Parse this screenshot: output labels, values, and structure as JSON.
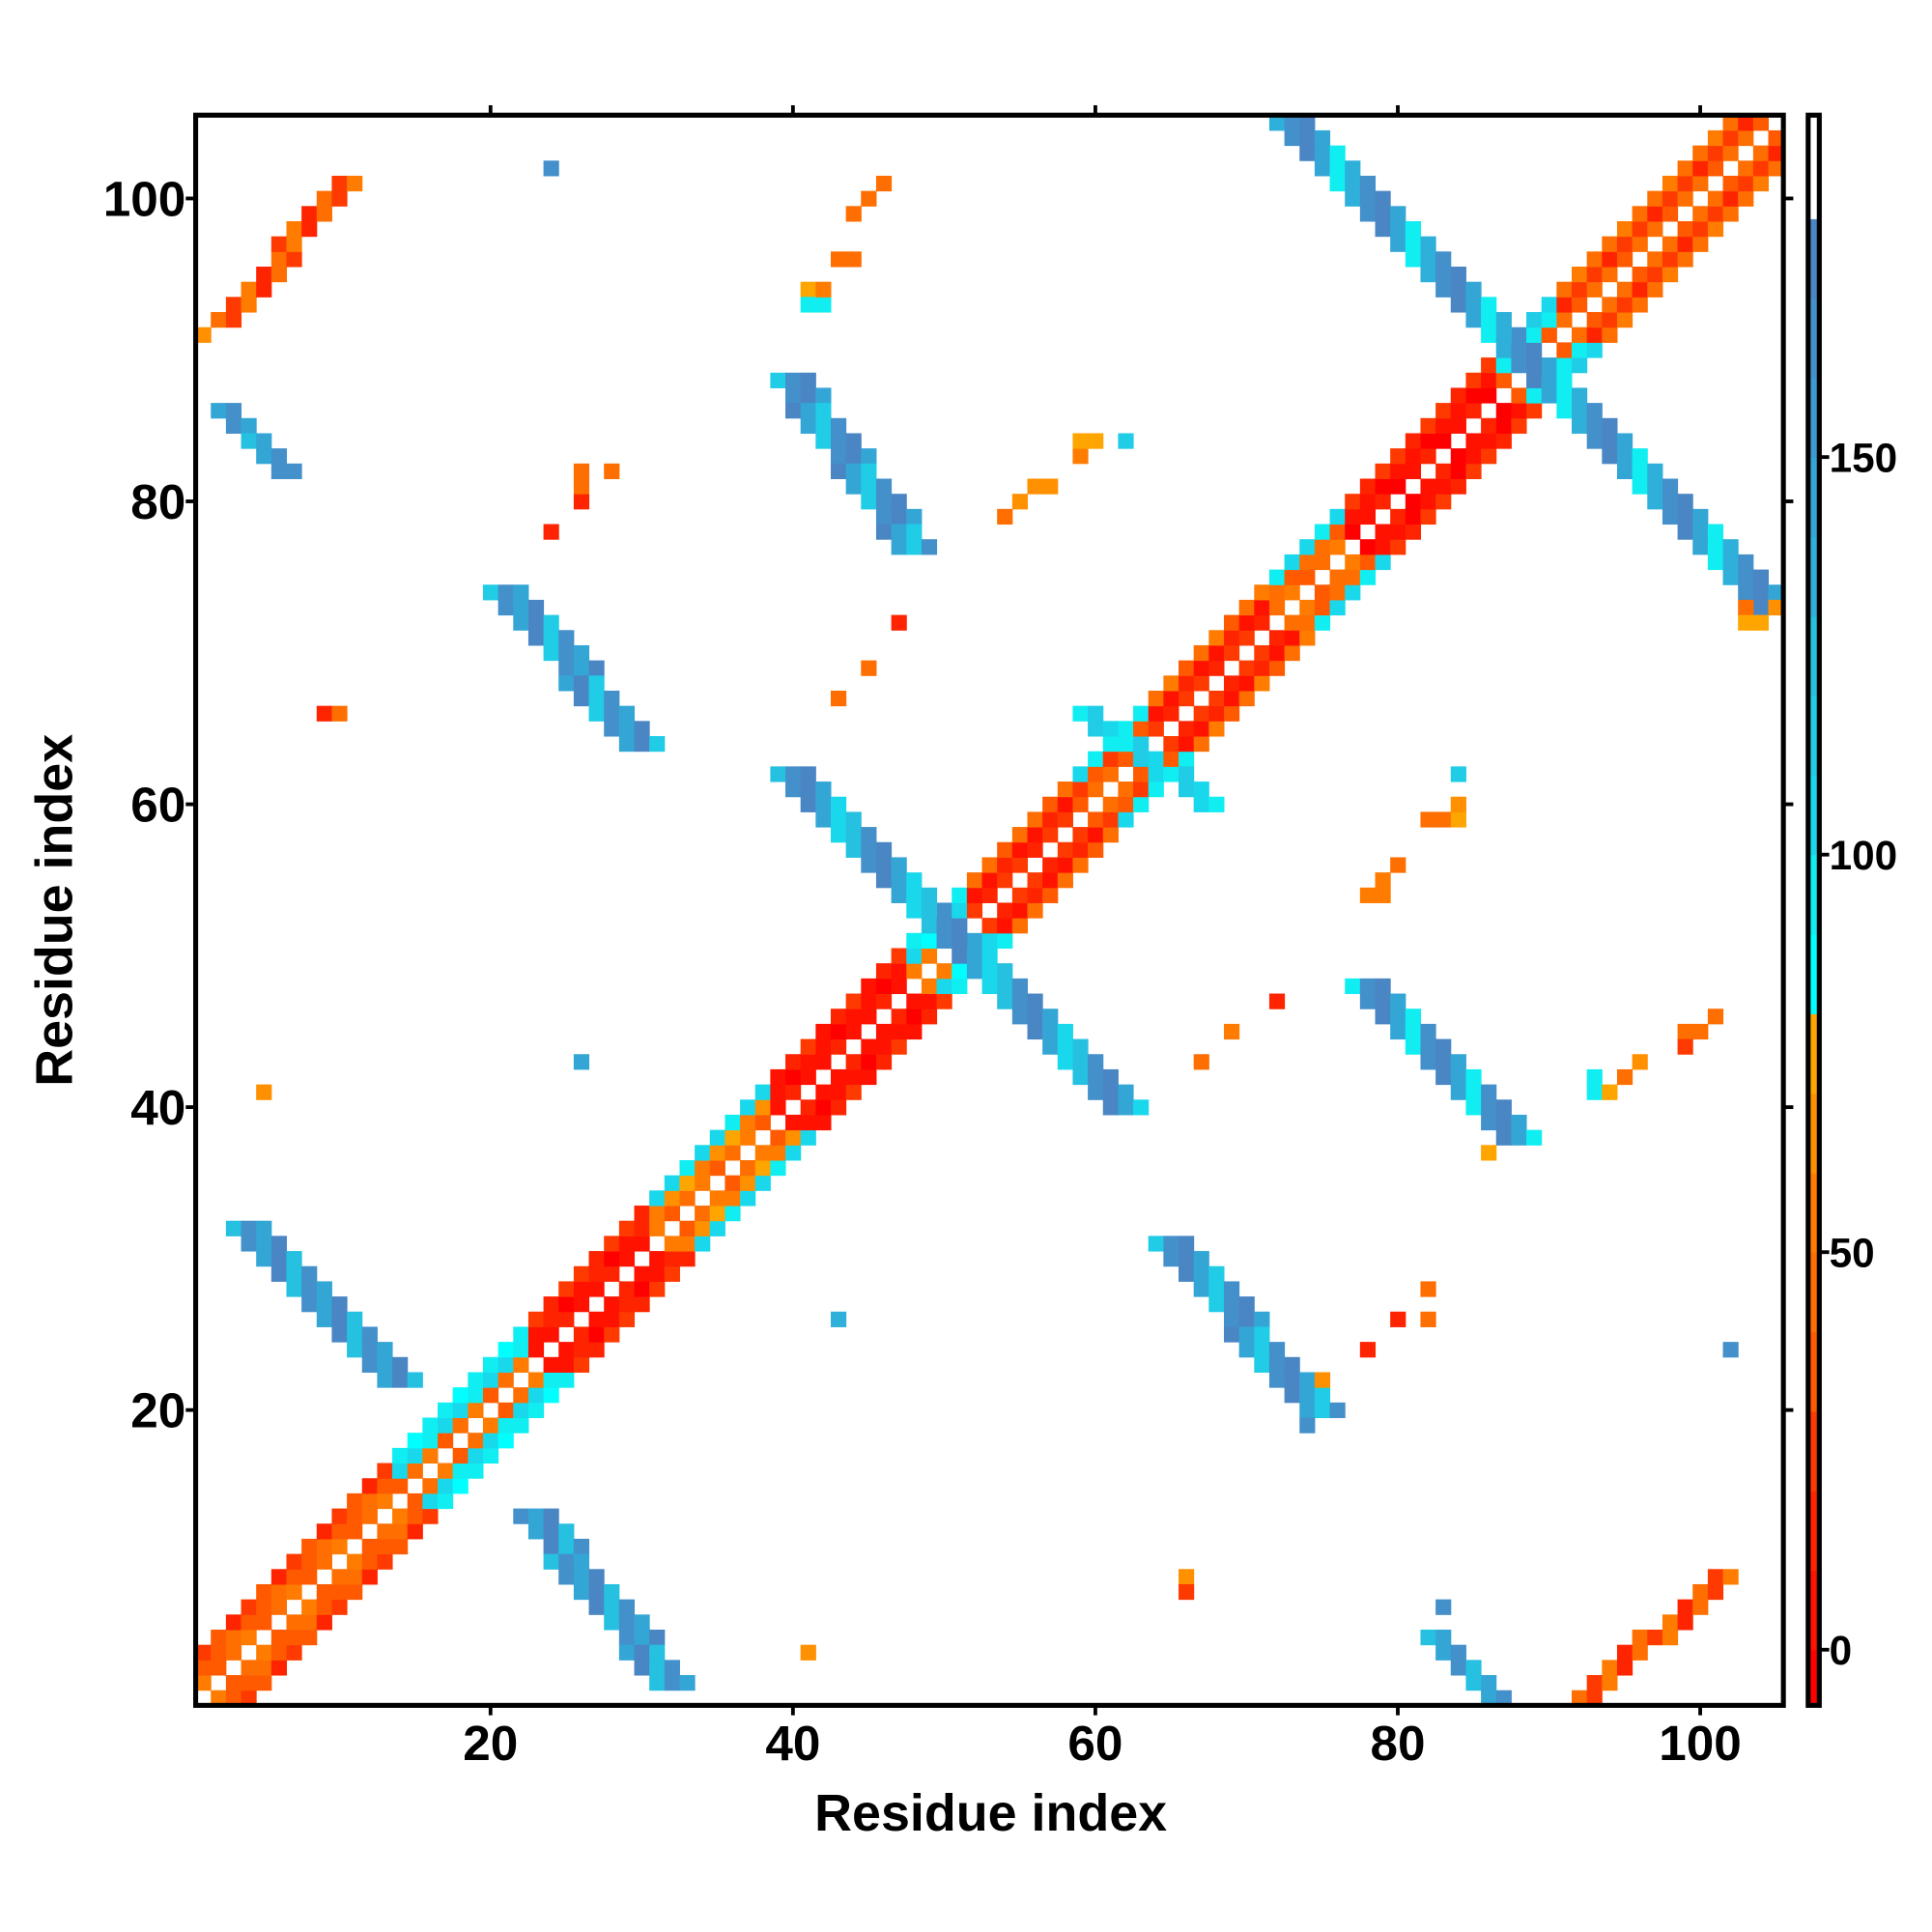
{
  "chart_data": {
    "type": "heatmap",
    "title": "",
    "xlabel": "Residue index",
    "ylabel": "Residue index",
    "xlim": [
      0.5,
      105.5
    ],
    "ylim": [
      0.5,
      105.5
    ],
    "n_residues": 105,
    "x_ticks": [
      20,
      40,
      60,
      80,
      100
    ],
    "y_ticks": [
      20,
      40,
      60,
      80,
      100
    ],
    "x_tick_labels": [
      "20",
      "40",
      "60",
      "80",
      "100"
    ],
    "y_tick_labels": [
      "20",
      "40",
      "60",
      "80",
      "100"
    ],
    "colorbar": {
      "range": [
        -7,
        193
      ],
      "ticks": [
        0,
        50,
        100,
        150
      ],
      "tick_labels": [
        "0",
        "50",
        "100",
        "150"
      ],
      "placement": "right",
      "bins": [
        {
          "from": -10,
          "to": 0,
          "color": "#ff0000"
        },
        {
          "from": 0,
          "to": 10,
          "color": "#ff1200"
        },
        {
          "from": 10,
          "to": 20,
          "color": "#ff2400"
        },
        {
          "from": 20,
          "to": 30,
          "color": "#ff3a00"
        },
        {
          "from": 30,
          "to": 40,
          "color": "#ff5a00"
        },
        {
          "from": 40,
          "to": 50,
          "color": "#ff6e00"
        },
        {
          "from": 50,
          "to": 60,
          "color": "#ff7c00"
        },
        {
          "from": 60,
          "to": 70,
          "color": "#ff9000"
        },
        {
          "from": 70,
          "to": 80,
          "color": "#ffa500"
        },
        {
          "from": 80,
          "to": 90,
          "color": "#00ffff"
        },
        {
          "from": 90,
          "to": 100,
          "color": "#10eef2"
        },
        {
          "from": 100,
          "to": 110,
          "color": "#1ad8ec"
        },
        {
          "from": 110,
          "to": 120,
          "color": "#20cce6"
        },
        {
          "from": 120,
          "to": 130,
          "color": "#26c0e0"
        },
        {
          "from": 130,
          "to": 140,
          "color": "#2eb0da"
        },
        {
          "from": 140,
          "to": 150,
          "color": "#34a6d6"
        },
        {
          "from": 150,
          "to": 160,
          "color": "#3c9ad0"
        },
        {
          "from": 160,
          "to": 170,
          "color": "#4490cb"
        },
        {
          "from": 170,
          "to": 180,
          "color": "#4a86c4"
        },
        {
          "from": 180,
          "to": 195,
          "color": "#ffffff"
        }
      ]
    },
    "diagonal_segments": [
      {
        "from": 1,
        "to": 13,
        "offset_values": [
          45,
          38,
          25
        ]
      },
      {
        "from": 14,
        "to": 22,
        "offset_values": [
          45,
          100,
          92
        ]
      },
      {
        "from": 23,
        "to": 30,
        "offset_values": [
          8,
          4,
          22
        ]
      },
      {
        "from": 31,
        "to": 38,
        "offset_values": [
          45,
          65,
          100
        ]
      },
      {
        "from": 39,
        "to": 47,
        "offset_values": [
          8,
          3,
          15
        ]
      },
      {
        "from": 48,
        "to": 51,
        "offset_values": [
          50,
          95,
          105
        ]
      },
      {
        "from": 52,
        "to": 58,
        "offset_values": [
          22,
          8,
          42
        ]
      },
      {
        "from": 59,
        "to": 63,
        "offset_values": [
          42,
          28,
          98
        ]
      },
      {
        "from": 64,
        "to": 71,
        "offset_values": [
          22,
          6,
          45
        ]
      },
      {
        "from": 72,
        "to": 76,
        "offset_values": [
          45,
          40,
          100
        ]
      },
      {
        "from": 77,
        "to": 86,
        "offset_values": [
          5,
          3,
          20
        ]
      },
      {
        "from": 87,
        "to": 90,
        "offset_values": [
          30,
          92,
          110
        ]
      },
      {
        "from": 91,
        "to": 105,
        "offset_values": [
          42,
          22,
          48
        ]
      }
    ],
    "bands": [
      {
        "start": [
          2,
          86
        ],
        "end": [
          6,
          82
        ],
        "width": 2,
        "values": [
          140,
          165,
          120
        ]
      },
      {
        "start": [
          22,
          13
        ],
        "end": [
          31,
          2
        ],
        "width": 3,
        "values": [
          165,
          140,
          170,
          120
        ]
      },
      {
        "start": [
          3,
          32
        ],
        "end": [
          13,
          22
        ],
        "width": 3,
        "values": [
          120,
          165,
          140,
          170
        ]
      },
      {
        "start": [
          20,
          74
        ],
        "end": [
          29,
          64
        ],
        "width": 3,
        "values": [
          110,
          165,
          140,
          170
        ]
      },
      {
        "start": [
          39,
          88
        ],
        "end": [
          47,
          77
        ],
        "width": 3,
        "values": [
          110,
          165,
          170,
          140
        ]
      },
      {
        "start": [
          39,
          62
        ],
        "end": [
          61,
          40
        ],
        "width": 3,
        "values": [
          120,
          165,
          170,
          140,
          100
        ]
      },
      {
        "start": [
          59,
          66
        ],
        "end": [
          67,
          60
        ],
        "width": 2,
        "values": [
          90,
          115,
          100
        ]
      },
      {
        "start": [
          64,
          31
        ],
        "end": [
          74,
          20
        ],
        "width": 3,
        "values": [
          110,
          165,
          170,
          140
        ]
      },
      {
        "start": [
          72,
          105
        ],
        "end": [
          104,
          73
        ],
        "width": 3,
        "values": [
          130,
          165,
          170,
          140,
          95
        ]
      },
      {
        "start": [
          77,
          48
        ],
        "end": [
          87,
          38
        ],
        "width": 3,
        "values": [
          95,
          165,
          170,
          140
        ]
      },
      {
        "start": [
          82,
          5
        ],
        "end": [
          86,
          1
        ],
        "width": 2,
        "values": [
          120,
          140,
          165
        ]
      },
      {
        "start": [
          2,
          92
        ],
        "end": [
          10,
          101
        ],
        "width": 2,
        "values": [
          40,
          20,
          55,
          10
        ]
      },
      {
        "start": [
          92,
          1
        ],
        "end": [
          101,
          9
        ],
        "width": 2,
        "values": [
          40,
          20,
          55,
          10
        ]
      }
    ],
    "points": [
      [
        24,
        102,
        165
      ],
      [
        41,
        94,
        70
      ],
      [
        41,
        93,
        95
      ],
      [
        42,
        93,
        95
      ],
      [
        43,
        96,
        45
      ],
      [
        44,
        96,
        45
      ],
      [
        46,
        101,
        45
      ],
      [
        45,
        100,
        45
      ],
      [
        44,
        99,
        45
      ],
      [
        5,
        41,
        65
      ],
      [
        26,
        43,
        140
      ],
      [
        43,
        26,
        130
      ],
      [
        41,
        4,
        60
      ],
      [
        66,
        9,
        60
      ],
      [
        66,
        8,
        20
      ],
      [
        83,
        7,
        165
      ],
      [
        102,
        24,
        165
      ],
      [
        78,
        24,
        15
      ],
      [
        80,
        26,
        10
      ],
      [
        82,
        26,
        45
      ],
      [
        82,
        28,
        45
      ],
      [
        9,
        66,
        15
      ],
      [
        10,
        66,
        45
      ],
      [
        43,
        67,
        45
      ],
      [
        45,
        69,
        45
      ],
      [
        47,
        72,
        10
      ],
      [
        24,
        78,
        15
      ],
      [
        26,
        80,
        15
      ],
      [
        26,
        82,
        45
      ],
      [
        28,
        82,
        45
      ],
      [
        55,
        80,
        60
      ],
      [
        56,
        81,
        60
      ],
      [
        57,
        81,
        60
      ],
      [
        54,
        79,
        45
      ],
      [
        59,
        83,
        55
      ],
      [
        59,
        84,
        70
      ],
      [
        60,
        84,
        70
      ],
      [
        62,
        84,
        110
      ],
      [
        84,
        62,
        110
      ],
      [
        82,
        59,
        45
      ],
      [
        83,
        59,
        45
      ],
      [
        84,
        59,
        70
      ],
      [
        84,
        60,
        60
      ],
      [
        79,
        55,
        55
      ],
      [
        80,
        56,
        45
      ],
      [
        78,
        54,
        55
      ],
      [
        79,
        54,
        55
      ],
      [
        72,
        47,
        15
      ],
      [
        69,
        45,
        50
      ],
      [
        67,
        43,
        45
      ],
      [
        93,
        41,
        90
      ],
      [
        93,
        42,
        90
      ],
      [
        94,
        41,
        70
      ],
      [
        95,
        42,
        45
      ],
      [
        96,
        43,
        60
      ],
      [
        99,
        45,
        45
      ],
      [
        100,
        45,
        45
      ],
      [
        101,
        46,
        45
      ],
      [
        99,
        44,
        25
      ],
      [
        104,
        72,
        70
      ],
      [
        105,
        73,
        65
      ],
      [
        103,
        73,
        45
      ],
      [
        86,
        37,
        70
      ],
      [
        74,
        19,
        165
      ],
      [
        75,
        22,
        65
      ],
      [
        1,
        91,
        60
      ],
      [
        4,
        85,
        140
      ],
      [
        7,
        82,
        165
      ],
      [
        42,
        94,
        55
      ],
      [
        26,
        81,
        45
      ],
      [
        103,
        72,
        70
      ]
    ]
  }
}
